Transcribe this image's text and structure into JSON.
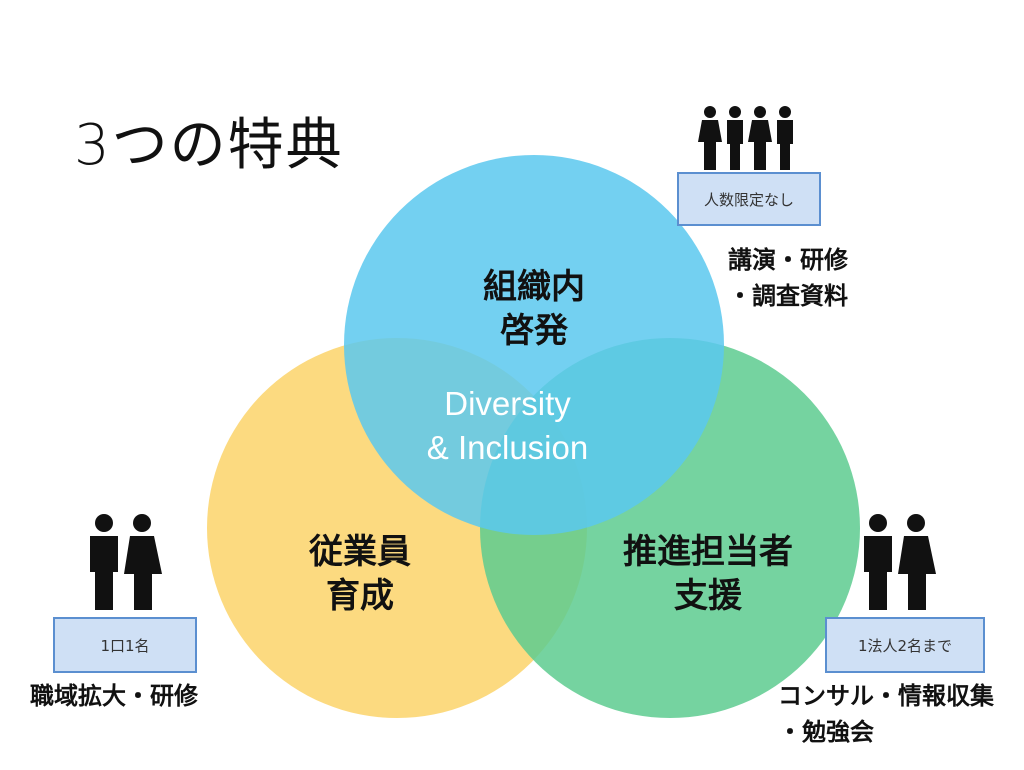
{
  "title": "3つの特典",
  "circles": {
    "top": {
      "label": "組織内\n啓発",
      "color": "#5bc8ef"
    },
    "left": {
      "label": "従業員\n育成",
      "color": "#fbd46a"
    },
    "right": {
      "label": "推進担当者\n支援",
      "color": "#5dcb8f"
    }
  },
  "center": {
    "label": "Diversity\n& Inclusion"
  },
  "groups": {
    "top_right": {
      "box": "人数限定なし",
      "desc": "講演・研修\n・調査資料",
      "people": 4
    },
    "left": {
      "box": "1口1名",
      "desc": "職域拡大・研修",
      "people": 2
    },
    "right": {
      "box": "1法人2名まで",
      "desc": "コンサル・情報収集\n・勉強会",
      "people": 2
    }
  }
}
